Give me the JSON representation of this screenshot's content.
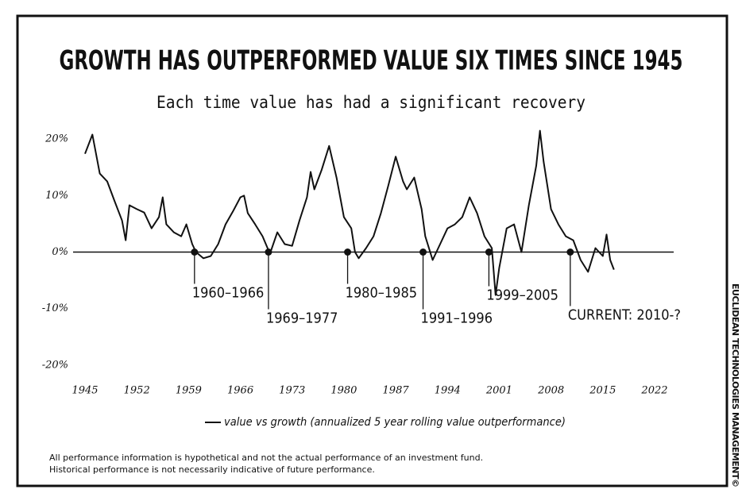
{
  "chart_data": {
    "type": "line",
    "title": "GROWTH HAS OUTPERFORMED VALUE SIX TIMES SINCE 1945",
    "subtitle": "Each time value has had a significant recovery",
    "x": [
      1945,
      1946,
      1947,
      1948,
      1949,
      1950,
      1950.5,
      1951,
      1952,
      1953,
      1954,
      1955,
      1955.5,
      1956,
      1957,
      1958,
      1958.7,
      1959.5,
      1960,
      1961,
      1962,
      1963,
      1964,
      1965,
      1966,
      1966.5,
      1967,
      1968,
      1969,
      1970,
      1971,
      1972,
      1973,
      1974,
      1975,
      1975.5,
      1976,
      1977,
      1978,
      1979,
      1980,
      1981,
      1981.5,
      1982,
      1983,
      1984,
      1985,
      1986,
      1987,
      1988,
      1988.5,
      1989.5,
      1990.5,
      1991,
      1992,
      1993,
      1994,
      1995,
      1996,
      1997,
      1998,
      1999,
      2000,
      2000.5,
      2001,
      2002,
      2003,
      2004,
      2005,
      2006,
      2006.5,
      2007,
      2008,
      2009,
      2010,
      2011,
      2012,
      2013,
      2014,
      2015,
      2015.5,
      2016,
      2016.5
    ],
    "series": [
      {
        "name": "value vs growth (annualized 5 year rolling value outperformance)",
        "color": "#111111",
        "values": [
          17.4,
          20.8,
          13.9,
          12.5,
          9,
          5.6,
          2.1,
          8.3,
          7.6,
          7,
          4.2,
          6.2,
          9.7,
          4.9,
          3.5,
          2.8,
          4.9,
          1.4,
          0,
          -1.1,
          -0.7,
          1.4,
          4.9,
          7.2,
          9.7,
          10,
          6.9,
          4.9,
          2.8,
          -0.3,
          3.5,
          1.4,
          1.1,
          5.6,
          9.7,
          14.2,
          11.1,
          14.6,
          18.8,
          13.2,
          6.2,
          4.2,
          0,
          -1.1,
          0.7,
          2.8,
          6.9,
          11.8,
          16.9,
          12.5,
          11.1,
          13.2,
          7.6,
          2.8,
          -1.4,
          1.4,
          4.2,
          4.9,
          6.2,
          9.7,
          6.9,
          2.8,
          0.7,
          -7.6,
          -2.8,
          4.2,
          4.9,
          0,
          8.3,
          15.3,
          21.5,
          16,
          7.6,
          4.9,
          2.8,
          2.1,
          -1.4,
          -3.5,
          0.7,
          -0.7,
          3.1,
          -1.4,
          -3.1
        ]
      }
    ],
    "xlim": [
      1943,
      2024
    ],
    "xticks": [
      1945,
      1952,
      1959,
      1966,
      1973,
      1980,
      1987,
      1994,
      2001,
      2008,
      2015,
      2022
    ],
    "ylim": [
      -22,
      22
    ],
    "yticks": [
      {
        "value": 20,
        "label": "20%"
      },
      {
        "value": 10,
        "label": "10%"
      },
      {
        "value": 0,
        "label": "0%"
      },
      {
        "value": -10,
        "label": "-10%"
      },
      {
        "value": -20,
        "label": "-20%"
      }
    ],
    "annotations": [
      {
        "label": "1960–1966",
        "x": 1959.8
      },
      {
        "label": "1969–1977",
        "x": 1969.8
      },
      {
        "label": "1980–1985",
        "x": 1980.5
      },
      {
        "label": "1991–1996",
        "x": 1990.7
      },
      {
        "label": "1999–2005",
        "x": 1999.6
      },
      {
        "label": "CURRENT: 2010-?",
        "x": 2010.6
      }
    ],
    "footnotes": [
      "All performance information is hypothetical and not the actual performance of an investment fund.",
      "Historical performance is not necessarily indicative of future performance."
    ],
    "credit": "EUCLIDEAN TECHNOLOGIES MANAGEMENT©"
  }
}
